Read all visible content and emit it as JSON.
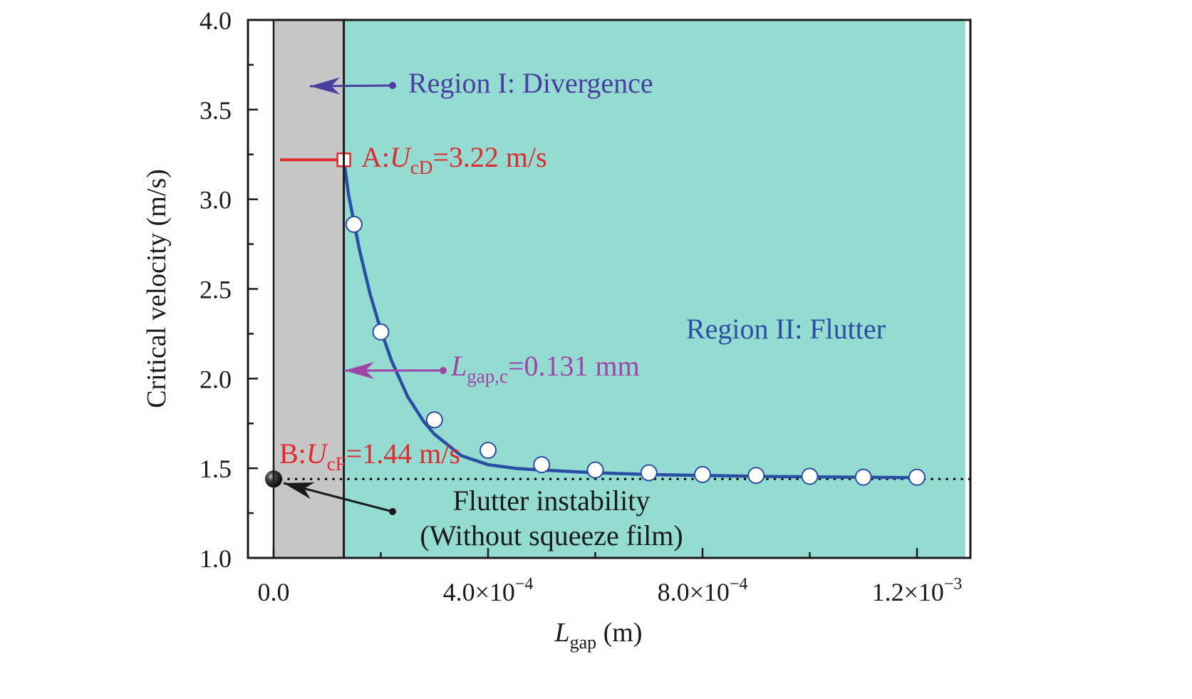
{
  "chart_data": {
    "type": "line",
    "title": "",
    "xlabel": "L",
    "xlabel_sub": "gap",
    "xlabel_unit": " (m)",
    "ylabel": "Critical velocity (m/s)",
    "xlim": [
      -9e-05,
      0.00129
    ],
    "ylim": [
      1.0,
      4.0
    ],
    "grid": false,
    "x_ticks": [
      {
        "value": 0.0,
        "label": "0.0"
      },
      {
        "value": 0.0004,
        "label": "4.0×10",
        "exp": "−4"
      },
      {
        "value": 0.0008,
        "label": "8.0×10",
        "exp": "−4"
      },
      {
        "value": 0.0012,
        "label": "1.2×10",
        "exp": "−3"
      }
    ],
    "x_minor_ticks": [
      0.0002,
      0.0006,
      0.001
    ],
    "y_ticks": [
      {
        "value": 1.0,
        "label": "1.0"
      },
      {
        "value": 1.5,
        "label": "1.5"
      },
      {
        "value": 2.0,
        "label": "2.0"
      },
      {
        "value": 2.5,
        "label": "2.5"
      },
      {
        "value": 3.0,
        "label": "3.0"
      },
      {
        "value": 3.5,
        "label": "3.5"
      },
      {
        "value": 4.0,
        "label": "4.0"
      }
    ],
    "y_minor_ticks": [
      1.25,
      1.75,
      2.25,
      2.75,
      3.25,
      3.75
    ],
    "regions": [
      {
        "name": "Region I: Divergence",
        "x_from": 0.0,
        "x_to": 0.000131,
        "color": "#c6c6c6"
      },
      {
        "name": "Region II: Flutter",
        "x_from": 0.000131,
        "x_to": 0.00129,
        "color": "#94dcd2"
      }
    ],
    "series": [
      {
        "name": "fitted curve",
        "kind": "line",
        "color": "#2b4ea5",
        "x": [
          0.000131,
          0.00014,
          0.00016,
          0.00018,
          0.0002,
          0.00022,
          0.00025,
          0.00028,
          0.0003,
          0.00035,
          0.0004,
          0.00045,
          0.0005,
          0.0006,
          0.0007,
          0.0008,
          0.0009,
          0.001,
          0.0011,
          0.0012
        ],
        "y": [
          3.22,
          3.02,
          2.72,
          2.47,
          2.27,
          2.1,
          1.9,
          1.76,
          1.69,
          1.57,
          1.52,
          1.5,
          1.49,
          1.475,
          1.465,
          1.46,
          1.455,
          1.452,
          1.45,
          1.448
        ]
      },
      {
        "name": "computed points",
        "kind": "scatter",
        "marker": "circle-open",
        "color": "#2b4ea5",
        "x": [
          0.00015,
          0.0002,
          0.0003,
          0.0004,
          0.0005,
          0.0006,
          0.0007,
          0.0008,
          0.0009,
          0.001,
          0.0011,
          0.0012
        ],
        "y": [
          2.86,
          2.26,
          1.77,
          1.6,
          1.52,
          1.49,
          1.475,
          1.465,
          1.46,
          1.455,
          1.45,
          1.45
        ]
      }
    ],
    "reference_line": {
      "y": 1.44,
      "style": "dotted",
      "color": "#111111"
    },
    "point_A": {
      "x": 0.000131,
      "y": 3.22,
      "color": "#e02a2f"
    },
    "point_B": {
      "x": 0.0,
      "y": 1.44,
      "color": "#111111"
    },
    "annotations": {
      "region1": {
        "text": "Region I: Divergence",
        "color": "#4a3ea0"
      },
      "region2": {
        "text": "Region II: Flutter",
        "color": "#2b4ea5"
      },
      "pointA": {
        "prefix": "A:",
        "var": "U",
        "sub": "cD",
        "suffix": "=3.22 m/s",
        "color": "#e02a2f"
      },
      "pointB": {
        "prefix": "B:",
        "var": "U",
        "sub": "cF",
        "suffix": "=1.44 m/s",
        "color": "#e02a2f"
      },
      "lgap": {
        "var": "L",
        "sub": "gap,c",
        "suffix": "=0.131 mm",
        "color": "#a044a8"
      },
      "flutter_line1": "Flutter instability",
      "flutter_line2": "(Without squeeze film)"
    }
  }
}
